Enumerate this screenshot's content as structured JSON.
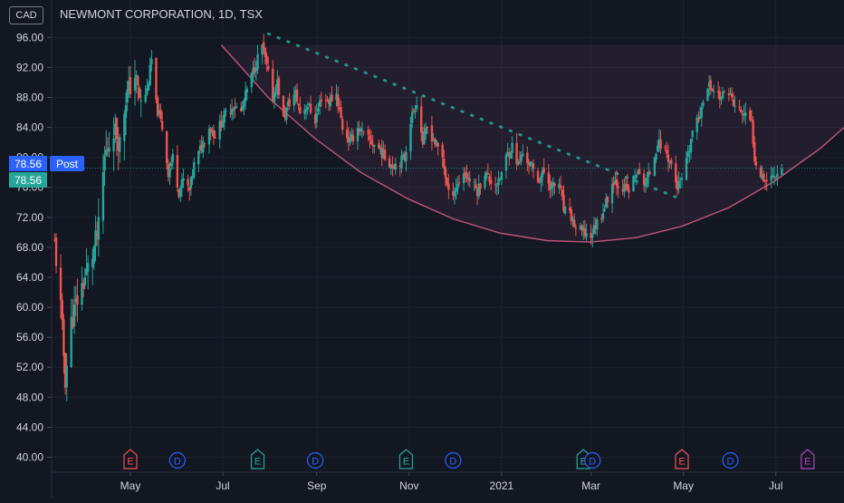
{
  "header": {
    "currency": "CAD",
    "title": "NEWMONT CORPORATION, 1D, TSX"
  },
  "price_tags": {
    "last_label": "78.56",
    "post_label": "Post",
    "post_price_label": "78.56",
    "colors": {
      "post": "#2962ff",
      "last": "#26a69a"
    }
  },
  "events": [
    {
      "type": "E",
      "color": "#ef5350",
      "date": "2020-05-01"
    },
    {
      "type": "D",
      "color": "#2962ff",
      "date": "2020-06-01"
    },
    {
      "type": "E",
      "color": "#26a69a",
      "date": "2020-07-24"
    },
    {
      "type": "D",
      "color": "#2962ff",
      "date": "2020-08-31"
    },
    {
      "type": "E",
      "color": "#26a69a",
      "date": "2020-10-30"
    },
    {
      "type": "D",
      "color": "#2962ff",
      "date": "2020-11-30"
    },
    {
      "type": "E",
      "color": "#26a69a",
      "date": "2021-02-24"
    },
    {
      "type": "D",
      "color": "#2962ff",
      "date": "2021-03-02"
    },
    {
      "type": "E",
      "color": "#ef5350",
      "date": "2021-04-30"
    },
    {
      "type": "D",
      "color": "#2962ff",
      "date": "2021-06-01"
    },
    {
      "type": "E",
      "color": "#ab47bc",
      "date": "2021-07-22"
    }
  ],
  "chart_data": {
    "type": "candlestick",
    "title": "NEWMONT CORPORATION, 1D, TSX",
    "x_range": [
      "2020-03-10",
      "2021-08-15"
    ],
    "y_range": [
      38,
      101
    ],
    "y_ticks": [
      "40.00",
      "44.00",
      "48.00",
      "52.00",
      "56.00",
      "60.00",
      "64.00",
      "68.00",
      "72.00",
      "76.00",
      "80.00",
      "84.00",
      "88.00",
      "92.00",
      "96.00"
    ],
    "x_ticks": [
      {
        "label": "May",
        "date": "2020-05-01"
      },
      {
        "label": "Jul",
        "date": "2020-07-01"
      },
      {
        "label": "Sep",
        "date": "2020-09-01"
      },
      {
        "label": "Nov",
        "date": "2020-11-01"
      },
      {
        "label": "2021",
        "date": "2021-01-01"
      },
      {
        "label": "Mar",
        "date": "2021-03-01"
      },
      {
        "label": "May",
        "date": "2021-05-01"
      },
      {
        "label": "Jul",
        "date": "2021-07-01"
      }
    ],
    "last_price": 78.56,
    "colors": {
      "up": "#26a69a",
      "down": "#ef5350",
      "cup": "#c2557a",
      "trend": "#26a69a",
      "zone": "rgba(120,70,110,0.16)"
    },
    "price_path": [
      [
        "2020-03-12",
        68.5
      ],
      [
        "2020-03-16",
        60.0
      ],
      [
        "2020-03-19",
        50.5
      ],
      [
        "2020-03-23",
        58.0
      ],
      [
        "2020-03-27",
        61.0
      ],
      [
        "2020-04-01",
        64.0
      ],
      [
        "2020-04-06",
        67.0
      ],
      [
        "2020-04-10",
        70.5
      ],
      [
        "2020-04-14",
        80.0
      ],
      [
        "2020-04-20",
        84.0
      ],
      [
        "2020-04-24",
        82.0
      ],
      [
        "2020-04-28",
        88.0
      ],
      [
        "2020-05-04",
        91.0
      ],
      [
        "2020-05-08",
        87.0
      ],
      [
        "2020-05-12",
        89.0
      ],
      [
        "2020-05-15",
        93.0
      ],
      [
        "2020-05-18",
        87.0
      ],
      [
        "2020-05-22",
        84.0
      ],
      [
        "2020-05-26",
        78.0
      ],
      [
        "2020-05-29",
        80.0
      ],
      [
        "2020-06-02",
        75.5
      ],
      [
        "2020-06-05",
        77.0
      ],
      [
        "2020-06-09",
        75.5
      ],
      [
        "2020-06-12",
        79.0
      ],
      [
        "2020-06-16",
        81.0
      ],
      [
        "2020-06-22",
        84.0
      ],
      [
        "2020-06-26",
        83.0
      ],
      [
        "2020-07-02",
        85.5
      ],
      [
        "2020-07-08",
        87.0
      ],
      [
        "2020-07-13",
        86.0
      ],
      [
        "2020-07-17",
        89.0
      ],
      [
        "2020-07-22",
        92.0
      ],
      [
        "2020-07-27",
        95.0
      ],
      [
        "2020-07-30",
        92.0
      ],
      [
        "2020-08-03",
        88.0
      ],
      [
        "2020-08-06",
        90.0
      ],
      [
        "2020-08-10",
        85.0
      ],
      [
        "2020-08-13",
        87.0
      ],
      [
        "2020-08-18",
        88.5
      ],
      [
        "2020-08-21",
        86.0
      ],
      [
        "2020-08-26",
        87.0
      ],
      [
        "2020-08-31",
        85.0
      ],
      [
        "2020-09-04",
        88.0
      ],
      [
        "2020-09-09",
        87.5
      ],
      [
        "2020-09-14",
        88.5
      ],
      [
        "2020-09-18",
        84.0
      ],
      [
        "2020-09-23",
        82.0
      ],
      [
        "2020-09-28",
        84.0
      ],
      [
        "2020-10-02",
        83.0
      ],
      [
        "2020-10-07",
        82.0
      ],
      [
        "2020-10-13",
        81.0
      ],
      [
        "2020-10-16",
        80.0
      ],
      [
        "2020-10-21",
        79.0
      ],
      [
        "2020-10-26",
        79.5
      ],
      [
        "2020-10-29",
        80.0
      ],
      [
        "2020-11-02",
        85.0
      ],
      [
        "2020-11-06",
        87.5
      ],
      [
        "2020-11-10",
        82.0
      ],
      [
        "2020-11-13",
        84.0
      ],
      [
        "2020-11-18",
        82.0
      ],
      [
        "2020-11-23",
        80.0
      ],
      [
        "2020-11-27",
        75.0
      ],
      [
        "2020-12-02",
        76.0
      ],
      [
        "2020-12-07",
        78.0
      ],
      [
        "2020-12-11",
        77.0
      ],
      [
        "2020-12-16",
        75.5
      ],
      [
        "2020-12-21",
        78.0
      ],
      [
        "2020-12-24",
        77.0
      ],
      [
        "2020-12-30",
        76.5
      ],
      [
        "2021-01-04",
        80.0
      ],
      [
        "2021-01-08",
        81.5
      ],
      [
        "2021-01-12",
        79.0
      ],
      [
        "2021-01-15",
        80.5
      ],
      [
        "2021-01-20",
        79.0
      ],
      [
        "2021-01-25",
        77.0
      ],
      [
        "2021-01-29",
        78.0
      ],
      [
        "2021-02-03",
        76.0
      ],
      [
        "2021-02-08",
        76.5
      ],
      [
        "2021-02-11",
        73.0
      ],
      [
        "2021-02-16",
        72.0
      ],
      [
        "2021-02-19",
        70.5
      ],
      [
        "2021-02-24",
        70.0
      ],
      [
        "2021-03-01",
        69.5
      ],
      [
        "2021-03-04",
        71.0
      ],
      [
        "2021-03-08",
        72.5
      ],
      [
        "2021-03-11",
        74.0
      ],
      [
        "2021-03-16",
        77.0
      ],
      [
        "2021-03-22",
        76.0
      ],
      [
        "2021-03-26",
        75.5
      ],
      [
        "2021-03-31",
        78.0
      ],
      [
        "2021-04-06",
        76.5
      ],
      [
        "2021-04-09",
        78.0
      ],
      [
        "2021-04-14",
        82.0
      ],
      [
        "2021-04-19",
        81.0
      ],
      [
        "2021-04-23",
        79.0
      ],
      [
        "2021-04-27",
        76.0
      ],
      [
        "2021-04-30",
        77.0
      ],
      [
        "2021-05-04",
        80.0
      ],
      [
        "2021-05-07",
        83.5
      ],
      [
        "2021-05-11",
        85.0
      ],
      [
        "2021-05-14",
        88.0
      ],
      [
        "2021-05-18",
        89.5
      ],
      [
        "2021-05-21",
        89.0
      ],
      [
        "2021-05-26",
        88.0
      ],
      [
        "2021-05-31",
        89.0
      ],
      [
        "2021-06-03",
        87.0
      ],
      [
        "2021-06-08",
        86.0
      ],
      [
        "2021-06-11",
        85.5
      ],
      [
        "2021-06-15",
        84.5
      ],
      [
        "2021-06-17",
        80.0
      ],
      [
        "2021-06-21",
        78.0
      ],
      [
        "2021-06-24",
        77.0
      ],
      [
        "2021-06-29",
        77.5
      ],
      [
        "2021-07-02",
        78.0
      ],
      [
        "2021-07-05",
        78.56
      ]
    ],
    "cup_curve": [
      [
        "2020-06-30",
        95.0
      ],
      [
        "2020-07-31",
        88.0
      ],
      [
        "2020-08-31",
        82.5
      ],
      [
        "2020-09-30",
        78.0
      ],
      [
        "2020-10-31",
        74.5
      ],
      [
        "2020-11-30",
        71.8
      ],
      [
        "2020-12-31",
        69.9
      ],
      [
        "2021-01-31",
        68.9
      ],
      [
        "2021-03-01",
        68.7
      ],
      [
        "2021-03-31",
        69.3
      ],
      [
        "2021-04-30",
        70.8
      ],
      [
        "2021-05-31",
        73.3
      ],
      [
        "2021-06-30",
        76.8
      ],
      [
        "2021-07-31",
        81.3
      ],
      [
        "2021-08-15",
        84.0
      ]
    ],
    "trendline": {
      "start": [
        "2020-07-31",
        96.5
      ],
      "end": [
        "2021-05-01",
        74.3
      ]
    },
    "zone": {
      "start": "2020-07-31",
      "end": "2021-08-15",
      "top": 95.0
    }
  }
}
